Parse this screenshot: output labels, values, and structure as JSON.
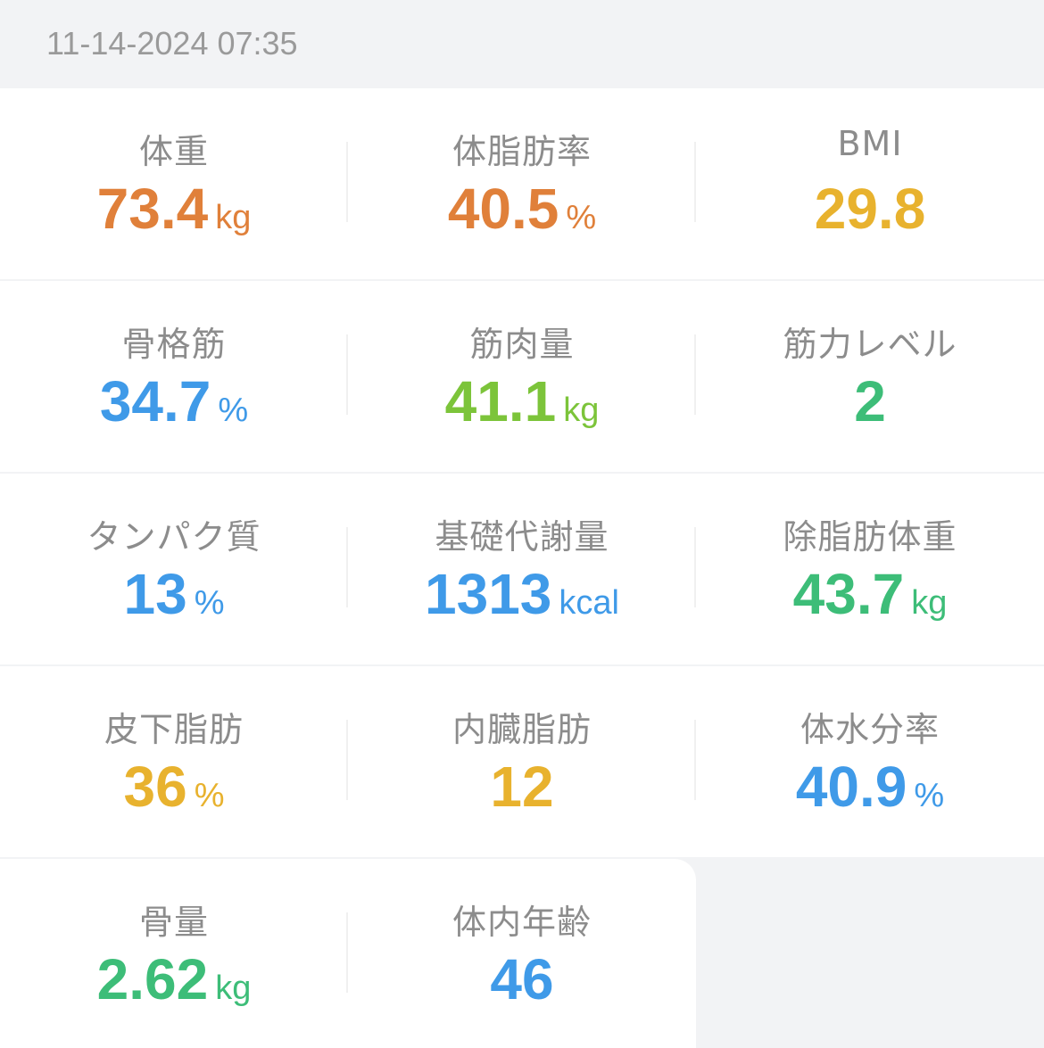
{
  "header": {
    "timestamp": "11-14-2024 07:35"
  },
  "metrics": [
    {
      "label": "体重",
      "value": "73.4",
      "unit": "kg",
      "color": "#e0803a"
    },
    {
      "label": "体脂肪率",
      "value": "40.5",
      "unit": "%",
      "color": "#e0803a"
    },
    {
      "label": "BMI",
      "value": "29.8",
      "unit": "",
      "color": "#e8b22e"
    },
    {
      "label": "骨格筋",
      "value": "34.7",
      "unit": "%",
      "color": "#3f9ae8"
    },
    {
      "label": "筋肉量",
      "value": "41.1",
      "unit": "kg",
      "color": "#7cc43a"
    },
    {
      "label": "筋力レベル",
      "value": "2",
      "unit": "",
      "color": "#3dbd78"
    },
    {
      "label": "タンパク質",
      "value": "13",
      "unit": "%",
      "color": "#3f9ae8"
    },
    {
      "label": "基礎代謝量",
      "value": "1313",
      "unit": "kcal",
      "color": "#3f9ae8"
    },
    {
      "label": "除脂肪体重",
      "value": "43.7",
      "unit": "kg",
      "color": "#3dbd78"
    },
    {
      "label": "皮下脂肪",
      "value": "36",
      "unit": "%",
      "color": "#e8b22e"
    },
    {
      "label": "内臓脂肪",
      "value": "12",
      "unit": "",
      "color": "#e8b22e"
    },
    {
      "label": "体水分率",
      "value": "40.9",
      "unit": "%",
      "color": "#3f9ae8"
    },
    {
      "label": "骨量",
      "value": "2.62",
      "unit": "kg",
      "color": "#3dbd78"
    },
    {
      "label": "体内年齢",
      "value": "46",
      "unit": "",
      "color": "#3f9ae8"
    }
  ]
}
